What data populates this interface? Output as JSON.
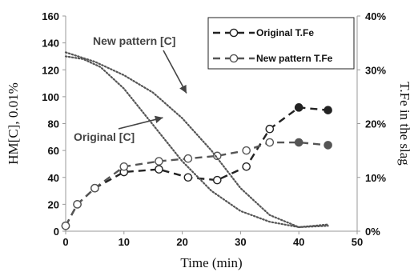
{
  "chart_data": {
    "type": "line",
    "xlabel": "Time (min)",
    "ylabel": "HM[C], 0.01%",
    "y2label": "T.Fe in the slag",
    "xlim": [
      0,
      50
    ],
    "ylim": [
      0,
      160
    ],
    "y2lim": [
      0,
      40
    ],
    "x_ticks": [
      "0",
      "10",
      "20",
      "30",
      "40",
      "50"
    ],
    "y_ticks": [
      "0",
      "20",
      "40",
      "60",
      "80",
      "100",
      "120",
      "140",
      "160"
    ],
    "y2_ticks": [
      "0%",
      "10%",
      "20%",
      "30%",
      "40%"
    ],
    "grid": false,
    "legend": {
      "position": "top-right",
      "entries": [
        "Original T.Fe",
        "New pattern T.Fe"
      ]
    },
    "annotations": [
      {
        "text": "New pattern [C]",
        "target_series": "New pattern [C]",
        "arrow_to": [
          21,
          99
        ]
      },
      {
        "text": "Original [C]",
        "target_series": "Original [C]",
        "arrow_to": [
          17.5,
          88
        ]
      }
    ],
    "series": [
      {
        "name": "Original T.Fe",
        "axis": "right",
        "style": "dashed-circles",
        "color": "#222222",
        "x": [
          0,
          2,
          5,
          10,
          16,
          21,
          26,
          31,
          35,
          40,
          45
        ],
        "y": [
          1,
          5,
          8,
          11,
          11.5,
          10,
          9.5,
          12,
          19,
          23,
          22.5
        ],
        "filled_from_index": 9
      },
      {
        "name": "New pattern T.Fe",
        "axis": "right",
        "style": "dashed-circles",
        "color": "#555555",
        "x": [
          0,
          2,
          5,
          10,
          16,
          21,
          26,
          31,
          35,
          40,
          45
        ],
        "y": [
          1,
          5,
          8,
          12,
          13,
          13.5,
          14,
          15,
          16.5,
          16.5,
          16
        ],
        "filled_from_index": 9
      },
      {
        "name": "New pattern [C]",
        "axis": "left",
        "style": "dotted",
        "color": "#555555",
        "x": [
          0,
          5,
          10,
          15,
          20,
          25,
          30,
          35,
          40,
          45
        ],
        "y": [
          133,
          126,
          116,
          103,
          84,
          60,
          32,
          12,
          3,
          4
        ]
      },
      {
        "name": "Original [C]",
        "axis": "left",
        "style": "dotted",
        "color": "#555555",
        "x": [
          0,
          3,
          6,
          10,
          15,
          20,
          25,
          30,
          35,
          40,
          45
        ],
        "y": [
          130,
          128,
          122,
          106,
          79,
          52,
          30,
          15,
          7,
          3,
          5
        ]
      }
    ]
  }
}
